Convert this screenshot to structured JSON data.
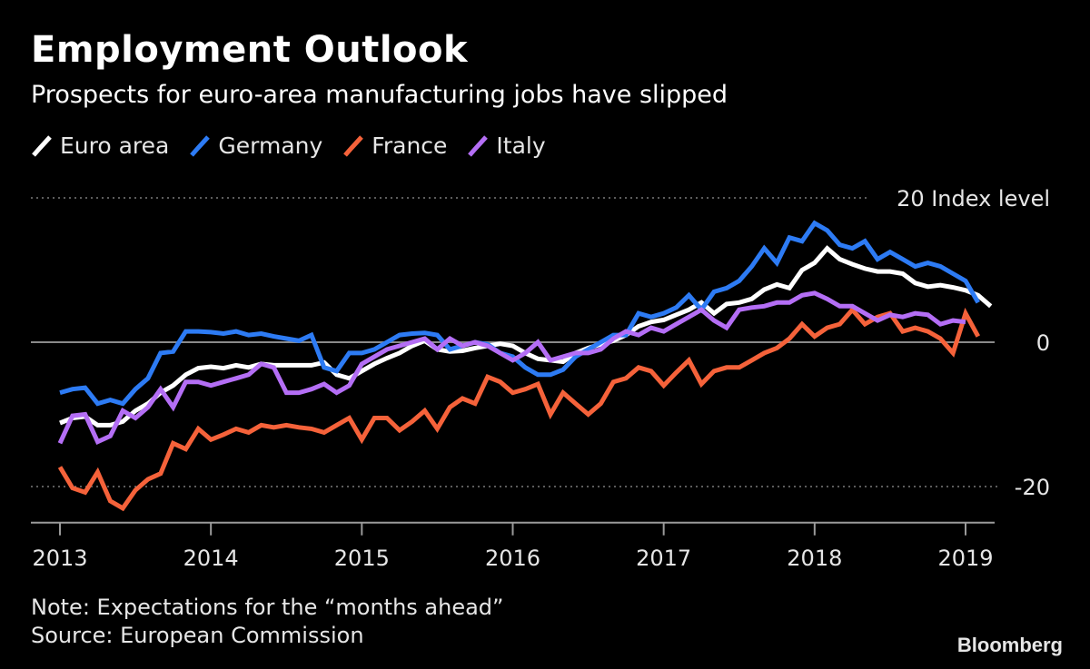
{
  "header": {
    "title": "Employment Outlook",
    "subtitle": "Prospects for euro-area manufacturing jobs have slipped"
  },
  "footer": {
    "note": "Note: Expectations for the “months ahead”",
    "source": "Source: European Commission",
    "brand": "Bloomberg"
  },
  "chart_data": {
    "type": "line",
    "title": "Employment Outlook",
    "subtitle": "Prospects for euro-area manufacturing jobs have slipped",
    "ylabel": "Index level",
    "ylim": [
      -25,
      20
    ],
    "xlim": [
      2012.8,
      2019.2
    ],
    "y_ticks": [
      {
        "value": 20,
        "label": "20 Index level"
      },
      {
        "value": 0,
        "label": "0"
      },
      {
        "value": -20,
        "label": "-20"
      }
    ],
    "x_ticks": [
      {
        "value": 2013,
        "label": "2013"
      },
      {
        "value": 2014,
        "label": "2014"
      },
      {
        "value": 2015,
        "label": "2015"
      },
      {
        "value": 2016,
        "label": "2016"
      },
      {
        "value": 2017,
        "label": "2017"
      },
      {
        "value": 2018,
        "label": "2018"
      },
      {
        "value": 2019,
        "label": "2019"
      }
    ],
    "grid": "horizontal dotted at 20 and -20, solid zero line",
    "legend_position": "top-left",
    "x_start": "2013-01",
    "x_frequency": "monthly",
    "series": [
      {
        "name": "Euro area",
        "color": "#ffffff",
        "values": [
          -11.2,
          -10.5,
          -10.3,
          -11.5,
          -11.5,
          -11.0,
          -9.5,
          -8.5,
          -7.0,
          -6.0,
          -4.5,
          -3.6,
          -3.4,
          -3.6,
          -3.2,
          -3.5,
          -3.0,
          -3.2,
          -3.2,
          -3.2,
          -3.2,
          -2.8,
          -4.5,
          -5.0,
          -4.0,
          -3.0,
          -2.2,
          -1.5,
          -0.5,
          0.2,
          -1.0,
          -1.3,
          -1.2,
          -0.8,
          -0.5,
          -0.2,
          -0.5,
          -1.5,
          -2.3,
          -2.5,
          -2.7,
          -1.5,
          -0.8,
          -0.3,
          0.2,
          1.0,
          2.2,
          2.8,
          3.1,
          3.8,
          4.5,
          5.5,
          4.0,
          5.3,
          5.5,
          6.0,
          7.3,
          8.0,
          7.5,
          10.0,
          11.0,
          13.0,
          11.5,
          10.8,
          10.2,
          9.8,
          9.8,
          9.5,
          8.2,
          7.7,
          7.9,
          7.6,
          7.2,
          6.5,
          5.0
        ]
      },
      {
        "name": "Germany",
        "color": "#2d7bf4",
        "values": [
          -7.0,
          -6.5,
          -6.3,
          -8.5,
          -8.0,
          -8.5,
          -6.5,
          -5.0,
          -1.5,
          -1.3,
          1.5,
          1.5,
          1.4,
          1.2,
          1.5,
          1.0,
          1.2,
          0.8,
          0.5,
          0.2,
          1.0,
          -3.5,
          -4.0,
          -1.5,
          -1.5,
          -1.0,
          0.0,
          1.0,
          1.2,
          1.3,
          1.0,
          -1.0,
          -0.5,
          0.0,
          -0.3,
          -1.5,
          -2.0,
          -3.5,
          -4.5,
          -4.5,
          -3.8,
          -2.0,
          -1.0,
          0.0,
          1.0,
          1.0,
          4.0,
          3.5,
          4.0,
          4.8,
          6.5,
          4.5,
          7.0,
          7.5,
          8.5,
          10.5,
          13.0,
          11.0,
          14.5,
          14.0,
          16.5,
          15.5,
          13.5,
          13.0,
          14.0,
          11.5,
          12.5,
          11.5,
          10.5,
          11.0,
          10.5,
          9.5,
          8.5,
          5.5
        ]
      },
      {
        "name": "France",
        "color": "#f5623a",
        "values": [
          -17.3,
          -20.2,
          -20.8,
          -18.0,
          -22.0,
          -23.0,
          -20.5,
          -19.0,
          -18.2,
          -14.0,
          -14.8,
          -12.0,
          -13.5,
          -12.8,
          -12.0,
          -12.5,
          -11.5,
          -11.8,
          -11.5,
          -11.8,
          -12.0,
          -12.5,
          -11.5,
          -10.5,
          -13.5,
          -10.5,
          -10.5,
          -12.2,
          -11.0,
          -9.5,
          -12.0,
          -9.0,
          -7.8,
          -8.5,
          -4.8,
          -5.5,
          -7.0,
          -6.5,
          -5.8,
          -10.0,
          -7.0,
          -8.5,
          -10.0,
          -8.5,
          -5.5,
          -5.0,
          -3.5,
          -4.0,
          -6.0,
          -4.2,
          -2.5,
          -5.8,
          -4.0,
          -3.5,
          -3.5,
          -2.5,
          -1.5,
          -0.8,
          0.5,
          2.5,
          0.8,
          2.0,
          2.5,
          4.5,
          2.5,
          3.5,
          4.0,
          1.5,
          2.0,
          1.5,
          0.5,
          -1.5,
          4.0,
          0.8
        ]
      },
      {
        "name": "Italy",
        "color": "#b46ef5",
        "values": [
          -14.0,
          -10.2,
          -10.0,
          -13.8,
          -13.0,
          -9.5,
          -10.5,
          -9.0,
          -6.5,
          -9.0,
          -5.5,
          -5.5,
          -6.0,
          -5.5,
          -5.0,
          -4.5,
          -3.0,
          -3.5,
          -7.0,
          -7.0,
          -6.5,
          -5.8,
          -7.0,
          -6.0,
          -3.0,
          -2.0,
          -1.0,
          -0.5,
          0.0,
          0.5,
          -1.0,
          0.5,
          -0.5,
          0.0,
          -0.5,
          -1.5,
          -2.5,
          -1.5,
          0.0,
          -2.5,
          -2.0,
          -1.5,
          -1.5,
          -1.0,
          0.5,
          1.5,
          1.0,
          2.0,
          1.5,
          2.5,
          3.5,
          4.5,
          3.0,
          2.0,
          4.5,
          4.8,
          5.0,
          5.5,
          5.5,
          6.5,
          6.8,
          6.0,
          5.0,
          5.0,
          4.0,
          3.0,
          3.8,
          3.5,
          4.0,
          3.8,
          2.5,
          3.0,
          2.8
        ]
      }
    ]
  }
}
